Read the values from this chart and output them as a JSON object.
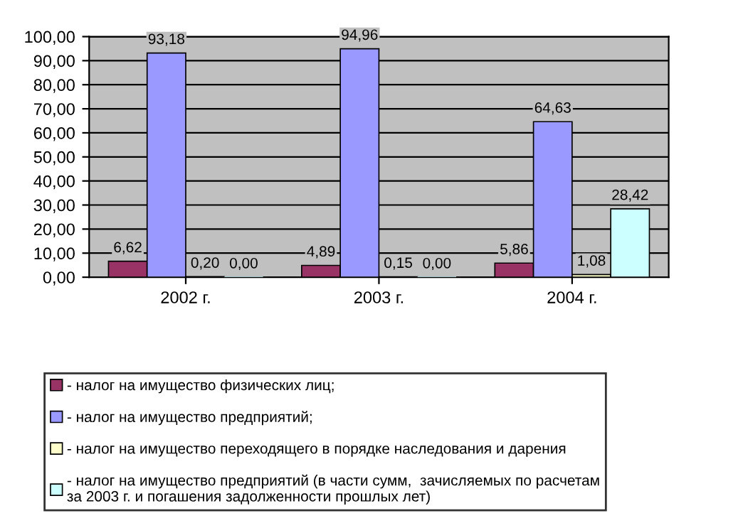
{
  "chart_data": {
    "type": "bar",
    "categories": [
      "2002 г.",
      "2003 г.",
      "2004 г."
    ],
    "series": [
      {
        "name": "- налог на имущество физических лиц;",
        "color": "#993366",
        "values": [
          6.62,
          4.89,
          5.86
        ],
        "value_labels": [
          "6,62",
          "4,89",
          "5,86"
        ]
      },
      {
        "name": "- налог на имущество предприятий;",
        "color": "#9999ff",
        "values": [
          93.18,
          94.96,
          64.63
        ],
        "value_labels": [
          "93,18",
          "94,96",
          "64,63"
        ]
      },
      {
        "name": "- налог на имущество переходящего в порядке наследования и дарения",
        "color": "#ffffcc",
        "values": [
          0.2,
          0.15,
          1.08
        ],
        "value_labels": [
          "0,20",
          "0,15",
          "1,08"
        ]
      },
      {
        "name": "- налог на имущество предприятий (в части сумм,  зачисляемых по расчетам\nза 2003 г. и погашения задолженности прошлых лет)",
        "color": "#ccffff",
        "values": [
          0.0,
          0.0,
          28.42
        ],
        "value_labels": [
          "0,00",
          "0,00",
          "28,42"
        ]
      }
    ],
    "ylim": [
      0,
      100
    ],
    "yticks": [
      {
        "value": 0,
        "label": "0,00"
      },
      {
        "value": 10,
        "label": "10,00"
      },
      {
        "value": 20,
        "label": "20,00"
      },
      {
        "value": 30,
        "label": "30,00"
      },
      {
        "value": 40,
        "label": "40,00"
      },
      {
        "value": 50,
        "label": "50,00"
      },
      {
        "value": 60,
        "label": "60,00"
      },
      {
        "value": 70,
        "label": "70,00"
      },
      {
        "value": 80,
        "label": "80,00"
      },
      {
        "value": 90,
        "label": "90,00"
      },
      {
        "value": 100,
        "label": "100,00"
      }
    ],
    "grid": "y",
    "legend": "bottom"
  }
}
